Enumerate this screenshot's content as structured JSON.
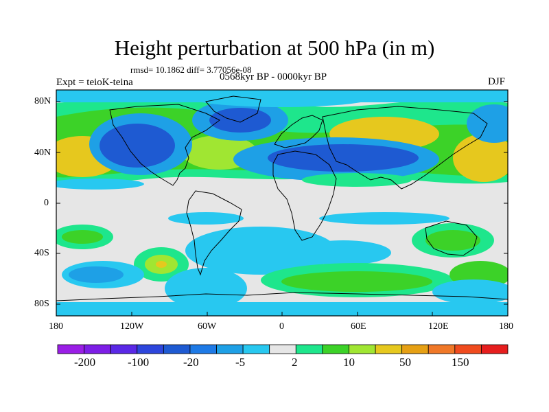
{
  "title": "Height perturbation at 500 hPa (in m)",
  "stats": "rmsd= 10.1862 diff= 3.77056e-08",
  "experiment": "Expt = teioK-teina",
  "period": "0568kyr BP - 0000kyr BP",
  "season": "DJF",
  "lat_labels": [
    "80N",
    "40N",
    "0",
    "40S",
    "80S"
  ],
  "lon_labels": [
    "180",
    "120W",
    "60W",
    "0",
    "60E",
    "120E",
    "180"
  ],
  "colorbar": {
    "colors": [
      "#9a1ee6",
      "#7d1ee6",
      "#5a28e6",
      "#2d46dc",
      "#1e5ad2",
      "#1e7ae6",
      "#1ea0e6",
      "#28c8f0",
      "#e6e6e6",
      "#1ee68c",
      "#3cd228",
      "#a0e632",
      "#e6c81e",
      "#e6a014",
      "#f07828",
      "#f04b1e",
      "#e61e1e"
    ],
    "tick_labels": [
      "-200",
      "-100",
      "-20",
      "-5",
      "2",
      "10",
      "50",
      "150"
    ]
  }
}
